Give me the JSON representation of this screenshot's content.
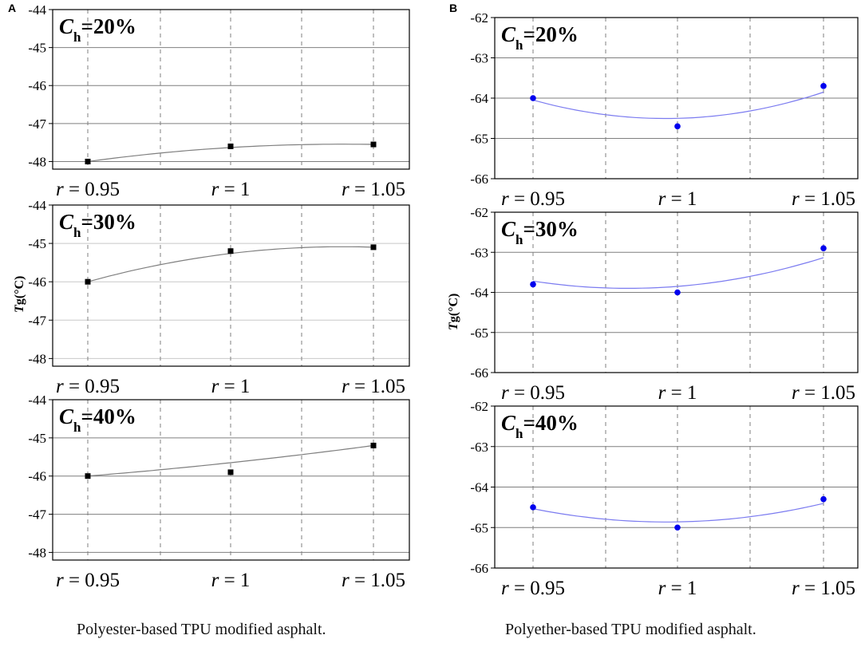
{
  "colors": {
    "series_a_line": "#7f7f7f",
    "series_a_marker": "#000000",
    "series_b_line": "#7b7bf0",
    "series_b_marker": "#0000ee",
    "major_grid": "#7f7f7f",
    "minor_grid": "#c8c8c8",
    "dashed_grid": "#7f7f7f"
  },
  "panels": [
    {
      "letter": "A",
      "ylabel_main": "T",
      "ylabel_sub": "g",
      "ylabel_unit": "(°C)",
      "caption": "Polyester-based TPU modified asphalt.",
      "chart_data": [
        {
          "type": "line",
          "title_main": "C",
          "title_sub": "h",
          "title_rest": "=20%",
          "categories": [
            "r = 0.95",
            "r = 1",
            "r = 1.05"
          ],
          "values": [
            -48.0,
            -47.6,
            -47.55
          ],
          "ylim": [
            -48.2,
            -44
          ],
          "yticks": [
            "-44",
            "-45",
            "-46",
            "-47",
            "-48"
          ],
          "ytick_values": [
            -44,
            -45,
            -46,
            -47,
            -48
          ],
          "marker": "square"
        },
        {
          "type": "line",
          "title_main": "C",
          "title_sub": "h",
          "title_rest": "=30%",
          "categories": [
            "r = 0.95",
            "r = 1",
            "r = 1.05"
          ],
          "values": [
            -46.0,
            -45.2,
            -45.1
          ],
          "ylim": [
            -48.2,
            -44
          ],
          "yticks": [
            "-44",
            "-45",
            "-46",
            "-47",
            "-48"
          ],
          "ytick_values": [
            -44,
            -45,
            -46,
            -47,
            -48
          ],
          "marker": "square"
        },
        {
          "type": "line",
          "title_main": "C",
          "title_sub": "h",
          "title_rest": "=40%",
          "categories": [
            "r = 0.95",
            "r = 1",
            "r = 1.05"
          ],
          "values": [
            -46.0,
            -45.9,
            -45.2
          ],
          "ylim": [
            -48.2,
            -44
          ],
          "yticks": [
            "-44",
            "-45",
            "-46",
            "-47",
            "-48"
          ],
          "ytick_values": [
            -44,
            -45,
            -46,
            -47,
            -48
          ],
          "marker": "square"
        }
      ]
    },
    {
      "letter": "B",
      "ylabel_main": "T",
      "ylabel_sub": "g",
      "ylabel_unit": "(°C)",
      "caption": "Polyether-based TPU modified asphalt.",
      "chart_data": [
        {
          "type": "line",
          "title_main": "C",
          "title_sub": "h",
          "title_rest": "=20%",
          "categories": [
            "r = 0.95",
            "r = 1",
            "r = 1.05"
          ],
          "values": [
            -64.0,
            -64.7,
            -63.7
          ],
          "ylim": [
            -66,
            -62
          ],
          "yticks": [
            "-62",
            "-63",
            "-64",
            "-65",
            "-66"
          ],
          "ytick_values": [
            -62,
            -63,
            -64,
            -65,
            -66
          ],
          "marker": "circle"
        },
        {
          "type": "line",
          "title_main": "C",
          "title_sub": "h",
          "title_rest": "=30%",
          "categories": [
            "r = 0.95",
            "r = 1",
            "r = 1.05"
          ],
          "values": [
            -63.8,
            -64.0,
            -62.9
          ],
          "ylim": [
            -66,
            -62
          ],
          "yticks": [
            "-62",
            "-63",
            "-64",
            "-65",
            "-66"
          ],
          "ytick_values": [
            -62,
            -63,
            -64,
            -65,
            -66
          ],
          "marker": "circle"
        },
        {
          "type": "line",
          "title_main": "C",
          "title_sub": "h",
          "title_rest": "=40%",
          "categories": [
            "r = 0.95",
            "r = 1",
            "r = 1.05"
          ],
          "values": [
            -64.5,
            -65.0,
            -64.3
          ],
          "ylim": [
            -66,
            -62
          ],
          "yticks": [
            "-62",
            "-63",
            "-64",
            "-65",
            "-66"
          ],
          "ytick_values": [
            -62,
            -63,
            -64,
            -65,
            -66
          ],
          "marker": "circle"
        }
      ]
    }
  ]
}
